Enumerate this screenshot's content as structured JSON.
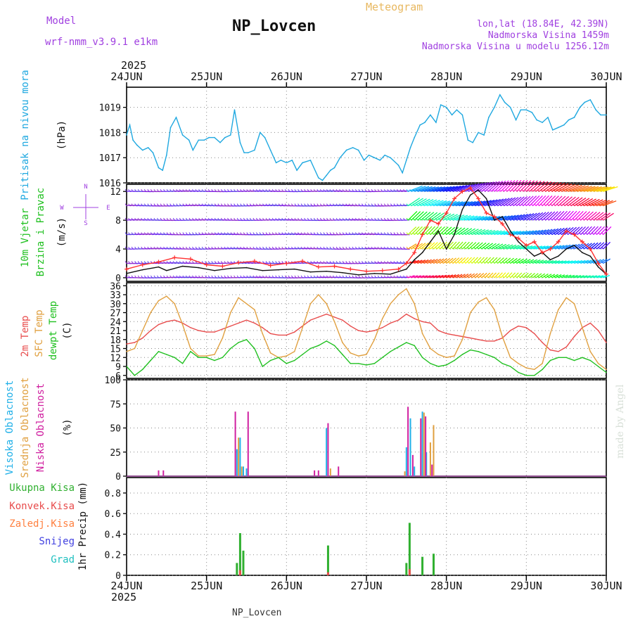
{
  "header": {
    "model_label": "Model",
    "model_name": "wrf-nmm_v3.9.1 e1km",
    "station": "NP_Lovcen",
    "meteogram": "Meteogram",
    "coords": "lon,lat (18.84E, 42.39N)",
    "elevation": "Nadmorska Visina 1459m",
    "model_elevation": "Nadmorska Visina u modelu 1256.12m",
    "year_top": "2025",
    "year_bottom": "2025",
    "footer_station": "NP_Lovcen",
    "credit": "made by Angel"
  },
  "colors": {
    "pressure": "#1fa8e0",
    "temp2m": "#e84c4c",
    "sfc": "#e0a040",
    "dewpt": "#20c020",
    "wind_speed": "#111111",
    "gust": "#ff3030",
    "high_cloud": "#20b0e8",
    "mid_cloud": "#e0a040",
    "low_cloud": "#d020a0",
    "total_precip": "#30b030",
    "conv_precip": "#e84c4c",
    "frozen": "#ff8040",
    "snow": "#4040e0",
    "graupel": "#20c0c0",
    "label_purple": "#a040e0"
  },
  "chart_data": [
    {
      "type": "line",
      "panel": "pressure",
      "labels": [
        "Pritisak na nivou mora",
        "(hPa)"
      ],
      "x_ticks": [
        "24JUN",
        "25JUN",
        "26JUN",
        "27JUN",
        "28JUN",
        "29JUN",
        "30JUN"
      ],
      "x_unit": "days from 24JUN 00",
      "y_ticks": [
        1016,
        1017,
        1018,
        1019
      ],
      "ylim": [
        1016,
        1019.8
      ],
      "grid": true,
      "series": [
        {
          "key": "pressure",
          "x": [
            0,
            0.04,
            0.08,
            0.13,
            0.2,
            0.27,
            0.33,
            0.4,
            0.45,
            0.5,
            0.55,
            0.62,
            0.7,
            0.78,
            0.83,
            0.9,
            0.97,
            1.03,
            1.1,
            1.17,
            1.23,
            1.3,
            1.35,
            1.42,
            1.47,
            1.52,
            1.6,
            1.67,
            1.73,
            1.8,
            1.87,
            1.93,
            2.0,
            2.07,
            2.13,
            2.2,
            2.3,
            2.4,
            2.45,
            2.5,
            2.55,
            2.6,
            2.67,
            2.75,
            2.83,
            2.9,
            2.97,
            3.03,
            3.1,
            3.17,
            3.23,
            3.3,
            3.4,
            3.45,
            3.5,
            3.55,
            3.6,
            3.67,
            3.73,
            3.8,
            3.87,
            3.93,
            4.0,
            4.07,
            4.13,
            4.2,
            4.27,
            4.33,
            4.4,
            4.47,
            4.53,
            4.6,
            4.67,
            4.73,
            4.8,
            4.87,
            4.93,
            5.0,
            5.07,
            5.13,
            5.2,
            5.27,
            5.33,
            5.4,
            5.47,
            5.53,
            5.6,
            5.67,
            5.73,
            5.8,
            5.87,
            5.93,
            6.0
          ],
          "y": [
            1017.9,
            1018.3,
            1017.7,
            1017.5,
            1017.3,
            1017.4,
            1017.2,
            1016.6,
            1016.5,
            1017.1,
            1018.2,
            1018.6,
            1017.9,
            1017.7,
            1017.3,
            1017.7,
            1017.7,
            1017.8,
            1017.8,
            1017.6,
            1017.8,
            1017.9,
            1018.9,
            1017.6,
            1017.2,
            1017.2,
            1017.3,
            1018.0,
            1017.8,
            1017.3,
            1016.8,
            1016.9,
            1016.8,
            1016.9,
            1016.5,
            1016.8,
            1016.9,
            1016.2,
            1016.1,
            1016.3,
            1016.5,
            1016.6,
            1017.0,
            1017.3,
            1017.4,
            1017.3,
            1016.9,
            1017.1,
            1017.0,
            1016.9,
            1017.1,
            1017.0,
            1016.7,
            1016.4,
            1016.9,
            1017.4,
            1017.8,
            1018.3,
            1018.4,
            1018.7,
            1018.4,
            1019.1,
            1019.0,
            1018.7,
            1018.9,
            1018.7,
            1017.7,
            1017.6,
            1018.0,
            1017.9,
            1018.6,
            1019.0,
            1019.5,
            1019.2,
            1019.0,
            1018.5,
            1018.9,
            1018.9,
            1018.8,
            1018.5,
            1018.4,
            1018.6,
            1018.1,
            1018.2,
            1018.3,
            1018.5,
            1018.6,
            1019.0,
            1019.2,
            1019.3,
            1018.9,
            1018.7,
            1018.7
          ]
        }
      ]
    },
    {
      "type": "line",
      "panel": "wind",
      "labels": [
        "10m Vjetar",
        "Brzina i Pravac",
        "(m/s)"
      ],
      "compass": [
        "N",
        "E",
        "S",
        "W"
      ],
      "y_ticks": [
        0,
        4,
        8,
        12
      ],
      "ylim": [
        -0.5,
        13
      ],
      "grid": true,
      "barb_levels": [
        0,
        2,
        4,
        6,
        8,
        10,
        12
      ],
      "series": [
        {
          "key": "wind_speed",
          "x": [
            0,
            0.2,
            0.4,
            0.5,
            0.7,
            0.9,
            1.1,
            1.3,
            1.5,
            1.7,
            1.9,
            2.1,
            2.3,
            2.5,
            2.7,
            2.9,
            3.1,
            3.3,
            3.5,
            3.6,
            3.7,
            3.8,
            3.9,
            4.0,
            4.1,
            4.2,
            4.3,
            4.4,
            4.5,
            4.6,
            4.7,
            4.8,
            4.9,
            5.0,
            5.1,
            5.2,
            5.3,
            5.4,
            5.5,
            5.6,
            5.7,
            5.8,
            5.9,
            6.0
          ],
          "y": [
            0.6,
            1.1,
            1.5,
            1.0,
            1.6,
            1.4,
            1.0,
            1.3,
            1.4,
            1.0,
            1.1,
            1.2,
            0.8,
            0.9,
            0.7,
            0.4,
            0.6,
            0.5,
            1.2,
            2.5,
            3.5,
            5.0,
            6.5,
            4.0,
            6.0,
            9.5,
            11.5,
            12.2,
            11.0,
            8.0,
            8.5,
            6.5,
            5.0,
            4.0,
            3.0,
            3.5,
            2.5,
            3.0,
            4.0,
            4.5,
            3.5,
            3.0,
            1.5,
            0.5
          ]
        },
        {
          "key": "gust",
          "x": [
            0,
            0.2,
            0.4,
            0.6,
            0.8,
            1.0,
            1.2,
            1.4,
            1.6,
            1.8,
            2.0,
            2.2,
            2.4,
            2.6,
            2.8,
            3.0,
            3.2,
            3.4,
            3.5,
            3.6,
            3.7,
            3.8,
            3.9,
            4.0,
            4.1,
            4.2,
            4.3,
            4.4,
            4.5,
            4.6,
            4.7,
            4.8,
            4.9,
            5.0,
            5.1,
            5.2,
            5.3,
            5.4,
            5.5,
            5.6,
            5.7,
            5.8,
            5.9,
            6.0
          ],
          "y": [
            1.2,
            1.8,
            2.2,
            2.8,
            2.6,
            1.8,
            1.6,
            2.1,
            2.3,
            1.7,
            2.0,
            2.3,
            1.5,
            1.6,
            1.2,
            0.9,
            1.0,
            1.2,
            2.0,
            3.5,
            6.0,
            8.0,
            7.5,
            9.0,
            11.0,
            12.0,
            12.5,
            11.0,
            9.0,
            8.5,
            7.5,
            6.0,
            5.5,
            4.5,
            5.0,
            3.5,
            4.0,
            5.0,
            6.5,
            6.0,
            5.0,
            4.0,
            2.0,
            0.5
          ]
        }
      ]
    },
    {
      "type": "line",
      "panel": "temperature",
      "labels": [
        "2m Temp",
        "SFC Temp",
        "dewpt Temp",
        "(C)"
      ],
      "y_ticks": [
        6,
        9,
        12,
        15,
        18,
        21,
        24,
        27,
        30,
        33,
        36
      ],
      "ylim": [
        5,
        37
      ],
      "grid": true,
      "series": [
        {
          "key": "temp2m",
          "x": [
            0,
            0.1,
            0.2,
            0.3,
            0.4,
            0.5,
            0.6,
            0.7,
            0.8,
            0.9,
            1.0,
            1.1,
            1.2,
            1.3,
            1.4,
            1.5,
            1.6,
            1.7,
            1.8,
            1.9,
            2.0,
            2.1,
            2.2,
            2.3,
            2.4,
            2.5,
            2.6,
            2.7,
            2.8,
            2.9,
            3.0,
            3.1,
            3.2,
            3.3,
            3.4,
            3.5,
            3.6,
            3.7,
            3.8,
            3.9,
            4.0,
            4.1,
            4.2,
            4.3,
            4.4,
            4.5,
            4.6,
            4.7,
            4.8,
            4.9,
            5.0,
            5.1,
            5.2,
            5.3,
            5.4,
            5.5,
            5.6,
            5.7,
            5.8,
            5.9,
            6.0
          ],
          "y": [
            16.5,
            17.0,
            18.5,
            21.0,
            23.0,
            24.0,
            24.5,
            23.5,
            22.0,
            21.0,
            20.5,
            20.5,
            21.5,
            22.5,
            23.5,
            24.5,
            23.5,
            22.0,
            20.0,
            19.5,
            19.5,
            20.5,
            22.5,
            24.5,
            25.5,
            26.5,
            25.5,
            24.5,
            22.5,
            21.0,
            20.5,
            21.0,
            22.0,
            23.5,
            24.5,
            26.5,
            25.0,
            24.0,
            23.5,
            21.0,
            20.0,
            19.5,
            19.0,
            18.5,
            18.0,
            17.5,
            17.5,
            18.5,
            21.0,
            22.5,
            22.0,
            20.0,
            17.0,
            14.5,
            14.0,
            15.5,
            19.0,
            22.0,
            23.5,
            21.0,
            17.0
          ]
        },
        {
          "key": "sfc",
          "x": [
            0,
            0.1,
            0.2,
            0.3,
            0.4,
            0.5,
            0.6,
            0.7,
            0.8,
            0.9,
            1.0,
            1.1,
            1.2,
            1.3,
            1.4,
            1.5,
            1.6,
            1.7,
            1.8,
            1.9,
            2.0,
            2.1,
            2.2,
            2.3,
            2.4,
            2.5,
            2.6,
            2.7,
            2.8,
            2.9,
            3.0,
            3.1,
            3.2,
            3.3,
            3.4,
            3.5,
            3.6,
            3.7,
            3.8,
            3.9,
            4.0,
            4.1,
            4.2,
            4.3,
            4.4,
            4.5,
            4.6,
            4.7,
            4.8,
            4.9,
            5.0,
            5.1,
            5.2,
            5.3,
            5.4,
            5.5,
            5.6,
            5.7,
            5.8,
            5.9,
            6.0
          ],
          "y": [
            14.0,
            15.0,
            21.0,
            27.0,
            31.0,
            32.5,
            30.0,
            23.0,
            15.0,
            12.5,
            12.5,
            13.0,
            18.5,
            27.0,
            32.0,
            30.0,
            28.0,
            20.0,
            13.5,
            12.0,
            12.5,
            14.0,
            22.0,
            30.0,
            33.0,
            30.0,
            24.0,
            17.0,
            13.5,
            12.5,
            13.0,
            18.0,
            25.0,
            30.0,
            33.0,
            35.0,
            30.0,
            20.0,
            15.0,
            13.0,
            12.0,
            12.5,
            18.0,
            27.0,
            30.5,
            32.0,
            28.0,
            19.0,
            12.0,
            10.0,
            8.5,
            8.0,
            10.0,
            20.0,
            28.0,
            32.0,
            30.0,
            22.0,
            14.0,
            10.0,
            8.0
          ]
        },
        {
          "key": "dewpt",
          "x": [
            0,
            0.1,
            0.2,
            0.3,
            0.4,
            0.5,
            0.6,
            0.7,
            0.8,
            0.9,
            1.0,
            1.1,
            1.2,
            1.3,
            1.4,
            1.5,
            1.6,
            1.7,
            1.8,
            1.9,
            2.0,
            2.1,
            2.2,
            2.3,
            2.4,
            2.5,
            2.6,
            2.7,
            2.8,
            2.9,
            3.0,
            3.1,
            3.2,
            3.3,
            3.4,
            3.5,
            3.6,
            3.7,
            3.8,
            3.9,
            4.0,
            4.1,
            4.2,
            4.3,
            4.4,
            4.5,
            4.6,
            4.7,
            4.8,
            4.9,
            5.0,
            5.1,
            5.2,
            5.3,
            5.4,
            5.5,
            5.6,
            5.7,
            5.8,
            5.9,
            6.0
          ],
          "y": [
            9.0,
            6.0,
            8.0,
            11.0,
            14.0,
            13.0,
            12.0,
            10.0,
            14.0,
            12.0,
            12.0,
            11.0,
            12.0,
            15.0,
            17.0,
            18.0,
            15.0,
            9.0,
            11.0,
            12.0,
            10.0,
            11.0,
            13.0,
            15.0,
            16.0,
            17.5,
            16.0,
            13.0,
            10.0,
            10.0,
            9.5,
            10.0,
            12.0,
            14.0,
            15.5,
            17.0,
            16.0,
            12.0,
            10.0,
            9.0,
            9.5,
            11.0,
            13.0,
            14.5,
            14.0,
            13.0,
            12.0,
            10.0,
            9.0,
            7.0,
            6.0,
            6.0,
            8.0,
            11.0,
            12.0,
            12.0,
            11.0,
            12.0,
            11.0,
            9.0,
            7.0
          ]
        }
      ]
    },
    {
      "type": "bar",
      "panel": "clouds",
      "labels": [
        "Visoka Oblacnost",
        "Srednja Oblacnost",
        "Niska Oblacnost",
        "(%)"
      ],
      "y_ticks": [
        0,
        25,
        50,
        75,
        100
      ],
      "ylim": [
        0,
        100
      ],
      "grid": true,
      "series": [
        {
          "key": "high_cloud",
          "x": [
            1.38,
            1.42,
            1.46,
            1.5,
            2.5,
            3.5,
            3.55,
            3.6,
            3.7,
            3.75
          ],
          "y": [
            28,
            40,
            10,
            8,
            50,
            30,
            60,
            10,
            67,
            25
          ]
        },
        {
          "key": "mid_cloud",
          "x": [
            1.4,
            1.44,
            2.55,
            3.48,
            3.72,
            3.8,
            3.84
          ],
          "y": [
            40,
            10,
            8,
            5,
            66,
            35,
            53
          ]
        },
        {
          "key": "low_cloud",
          "x": [
            0.4,
            0.46,
            1.36,
            1.52,
            2.35,
            2.4,
            2.52,
            2.65,
            3.52,
            3.58,
            3.68,
            3.74,
            3.82
          ],
          "y": [
            6,
            6,
            67,
            67,
            6,
            6,
            55,
            10,
            72,
            22,
            60,
            62,
            12
          ]
        }
      ]
    },
    {
      "type": "bar",
      "panel": "precipitation",
      "labels": [
        "Ukupna Kisa",
        "Konvek.Kisa",
        "Zaledj.Kisa",
        "Snijeg",
        "Grad",
        "1hr Precip (mm)"
      ],
      "y_ticks": [
        0,
        0.2,
        0.4,
        0.6,
        0.8
      ],
      "ylim": [
        0,
        0.95
      ],
      "grid": true,
      "series": [
        {
          "key": "total_precip",
          "x": [
            1.38,
            1.42,
            1.46,
            2.52,
            3.5,
            3.54,
            3.7,
            3.84
          ],
          "y": [
            0.12,
            0.41,
            0.24,
            0.29,
            0.12,
            0.51,
            0.18,
            0.21
          ]
        },
        {
          "key": "conv_precip",
          "x": [
            1.42,
            2.52,
            3.54
          ],
          "y": [
            0.05,
            0.03,
            0.06
          ]
        }
      ]
    }
  ]
}
